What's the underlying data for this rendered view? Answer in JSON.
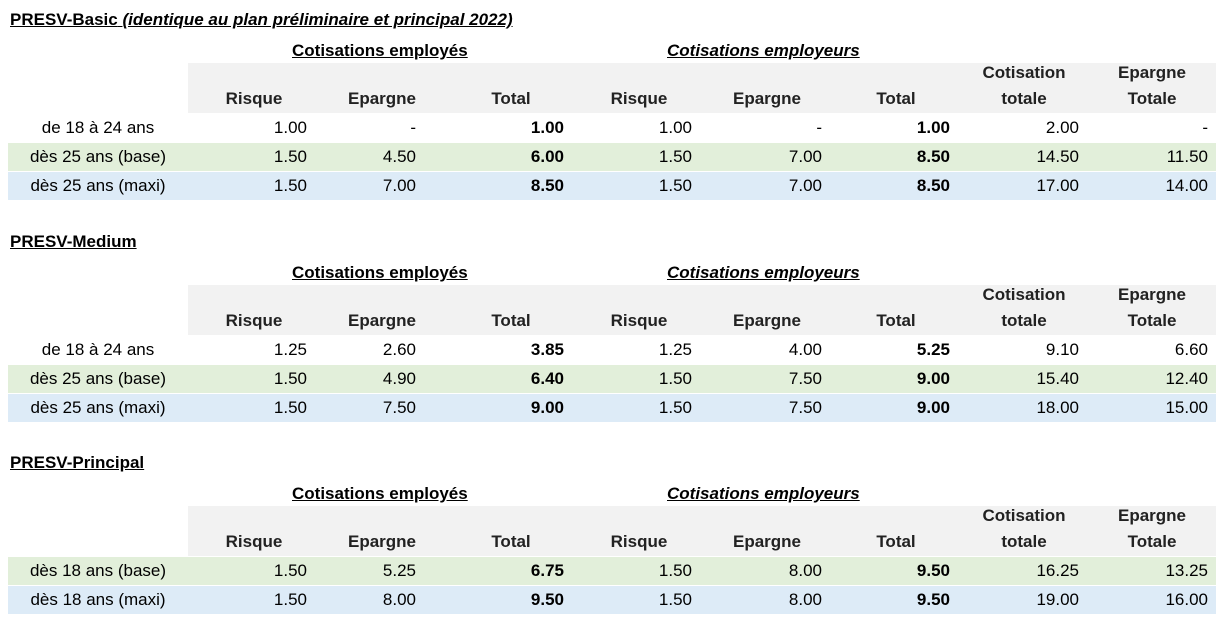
{
  "headers": {
    "group_employes": "Cotisations employés",
    "group_employeurs": "Cotisations employeurs",
    "risque": "Risque",
    "epargne": "Epargne",
    "total": "Total",
    "cotisation_totale_1": "Cotisation",
    "cotisation_totale_2": "totale",
    "epargne_totale_1": "Epargne",
    "epargne_totale_2": "Totale"
  },
  "sections": [
    {
      "title": "PRESV-Basic",
      "subtitle": "(identique au plan préliminaire et principal 2022)",
      "rows": [
        {
          "label": "de 18 à 24 ans",
          "style": "plain",
          "values": [
            "1.00",
            "-",
            "1.00",
            "1.00",
            "-",
            "1.00",
            "2.00",
            "-"
          ]
        },
        {
          "label": "dès 25 ans (base)",
          "style": "base",
          "values": [
            "1.50",
            "4.50",
            "6.00",
            "1.50",
            "7.00",
            "8.50",
            "14.50",
            "11.50"
          ]
        },
        {
          "label": "dès 25 ans (maxi)",
          "style": "maxi",
          "values": [
            "1.50",
            "7.00",
            "8.50",
            "1.50",
            "7.00",
            "8.50",
            "17.00",
            "14.00"
          ]
        }
      ]
    },
    {
      "title": "PRESV-Medium",
      "subtitle": "",
      "rows": [
        {
          "label": "de 18 à 24 ans",
          "style": "plain",
          "values": [
            "1.25",
            "2.60",
            "3.85",
            "1.25",
            "4.00",
            "5.25",
            "9.10",
            "6.60"
          ]
        },
        {
          "label": "dès 25 ans (base)",
          "style": "base",
          "values": [
            "1.50",
            "4.90",
            "6.40",
            "1.50",
            "7.50",
            "9.00",
            "15.40",
            "12.40"
          ]
        },
        {
          "label": "dès 25 ans (maxi)",
          "style": "maxi",
          "values": [
            "1.50",
            "7.50",
            "9.00",
            "1.50",
            "7.50",
            "9.00",
            "18.00",
            "15.00"
          ]
        }
      ]
    },
    {
      "title": "PRESV-Principal",
      "subtitle": "",
      "rows": [
        {
          "label": "dès 18 ans (base)",
          "style": "base",
          "values": [
            "1.50",
            "5.25",
            "6.75",
            "1.50",
            "8.00",
            "9.50",
            "16.25",
            "13.25"
          ]
        },
        {
          "label": "dès 18 ans (maxi)",
          "style": "maxi",
          "values": [
            "1.50",
            "8.00",
            "9.50",
            "1.50",
            "8.00",
            "9.50",
            "19.00",
            "16.00"
          ]
        }
      ]
    }
  ]
}
